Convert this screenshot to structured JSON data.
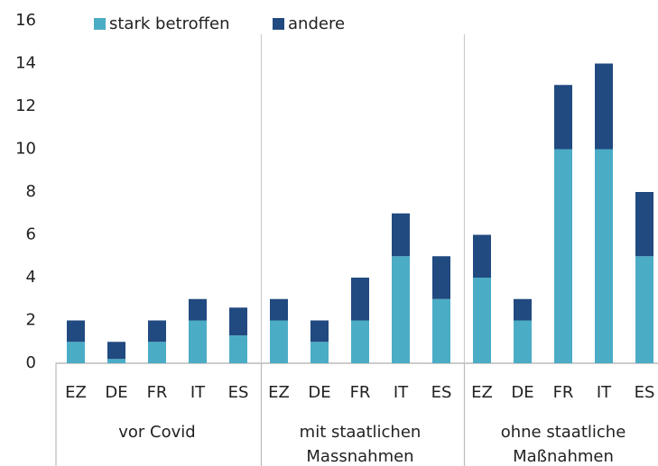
{
  "chart_data": {
    "type": "stacked-bar",
    "category_groups": [
      {
        "name": "vor Covid",
        "categories": [
          "EZ",
          "DE",
          "FR",
          "IT",
          "ES"
        ]
      },
      {
        "name": "mit staatlichen Massnahmen",
        "categories": [
          "EZ",
          "DE",
          "FR",
          "IT",
          "ES"
        ]
      },
      {
        "name": "ohne staatliche Maßnahmen",
        "categories": [
          "EZ",
          "DE",
          "FR",
          "IT",
          "ES"
        ]
      }
    ],
    "series": [
      {
        "name": "stark betroffen",
        "color": "#4bacc6",
        "values": [
          1,
          0.2,
          1,
          2,
          1.3,
          2,
          1,
          2,
          5,
          3,
          4,
          2,
          10,
          10,
          5
        ]
      },
      {
        "name": "andere",
        "color": "#214a80",
        "values": [
          1,
          0.8,
          1,
          1,
          1.3,
          1,
          1,
          2,
          2,
          2,
          2,
          1,
          3,
          4,
          3
        ]
      }
    ],
    "ylim": [
      0,
      16
    ],
    "yticks": [
      0,
      2,
      4,
      6,
      8,
      10,
      12,
      14,
      16
    ],
    "legend": "top"
  }
}
